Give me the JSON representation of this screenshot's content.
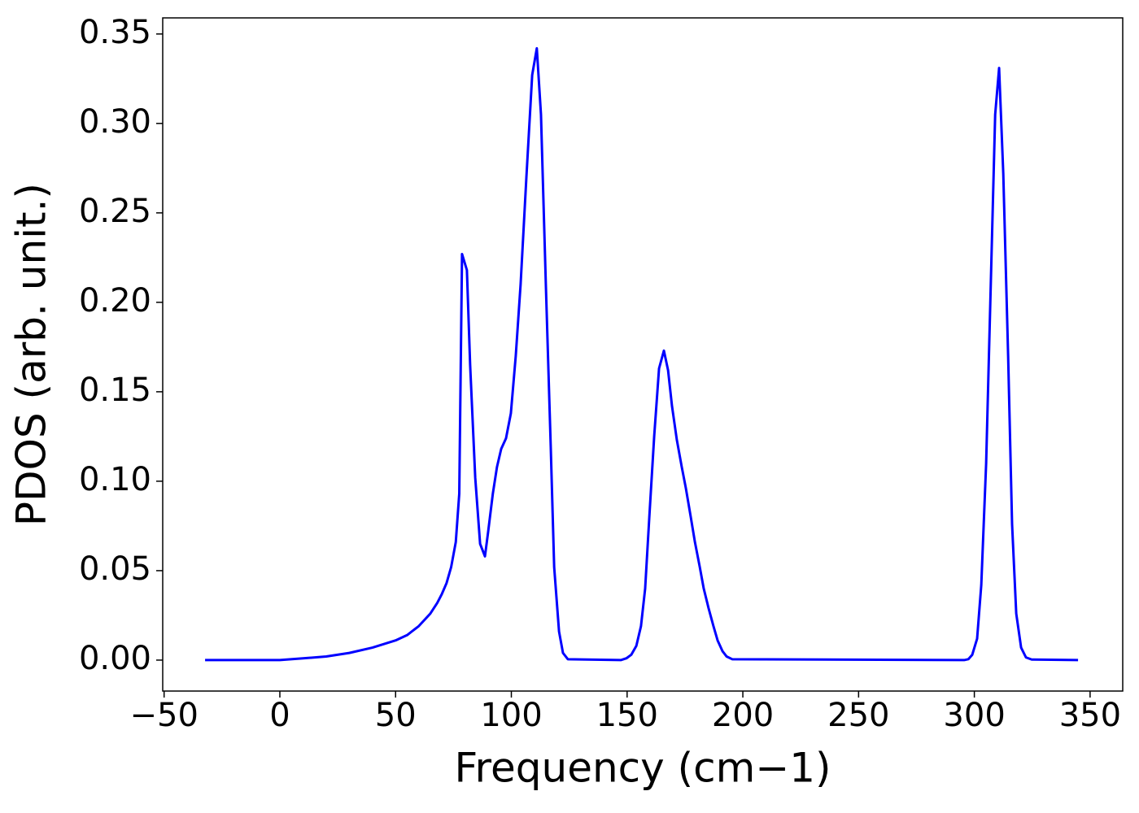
{
  "chart_data": {
    "type": "line",
    "xlabel": "Frequency (cm−1)",
    "ylabel": "PDOS (arb. unit.)",
    "color": "#0000ff",
    "x": [
      -32.3,
      0,
      10,
      20,
      30,
      40,
      50,
      55,
      60,
      65,
      68,
      70,
      72,
      74,
      76,
      77.5,
      78.7,
      80.8,
      82.2,
      84.4,
      86.5,
      88.6,
      90,
      92,
      93.8,
      95.6,
      97.7,
      99.8,
      101.9,
      104,
      106.5,
      109,
      111,
      112.8,
      114.9,
      117,
      118.5,
      120.6,
      122.3,
      124.4,
      147.3,
      149.7,
      151.8,
      154,
      156,
      157.8,
      159.6,
      161.7,
      163.8,
      165.9,
      167.7,
      169.4,
      171.5,
      173.6,
      175.4,
      177.5,
      179.3,
      181.4,
      183.1,
      185.2,
      187.3,
      189.1,
      191.2,
      193,
      195.4,
      295.6,
      297.4,
      299.1,
      301.2,
      303,
      305.1,
      306.9,
      309,
      310.7,
      312.5,
      314.6,
      316.3,
      318.1,
      320.2,
      322.3,
      324.8,
      344.8
    ],
    "values": [
      0,
      0,
      0.001,
      0.002,
      0.004,
      0.007,
      0.011,
      0.014,
      0.019,
      0.026,
      0.032,
      0.037,
      0.043,
      0.052,
      0.066,
      0.093,
      0.227,
      0.218,
      0.165,
      0.102,
      0.065,
      0.058,
      0.072,
      0.093,
      0.108,
      0.118,
      0.124,
      0.138,
      0.17,
      0.21,
      0.27,
      0.327,
      0.342,
      0.305,
      0.21,
      0.12,
      0.052,
      0.016,
      0.004,
      0.0005,
      0,
      0.001,
      0.003,
      0.008,
      0.019,
      0.04,
      0.08,
      0.125,
      0.163,
      0.173,
      0.162,
      0.142,
      0.123,
      0.108,
      0.096,
      0.08,
      0.066,
      0.052,
      0.04,
      0.029,
      0.019,
      0.011,
      0.005,
      0.002,
      0.0005,
      0,
      0.0005,
      0.003,
      0.012,
      0.042,
      0.11,
      0.2,
      0.305,
      0.331,
      0.272,
      0.17,
      0.076,
      0.026,
      0.007,
      0.0015,
      0.0003,
      0
    ],
    "xlim": [
      -50.6,
      364.1
    ],
    "ylim": [
      -0.0173,
      0.359
    ],
    "xticks": [
      {
        "value": -50,
        "label": "−50"
      },
      0,
      50,
      100,
      150,
      200,
      250,
      300,
      350
    ],
    "yticks": [
      {
        "value": 0,
        "label": "0.00"
      },
      {
        "value": 0.05,
        "label": "0.05"
      },
      {
        "value": 0.1,
        "label": "0.10"
      },
      {
        "value": 0.15,
        "label": "0.15"
      },
      {
        "value": 0.2,
        "label": "0.20"
      },
      {
        "value": 0.25,
        "label": "0.25"
      },
      {
        "value": 0.3,
        "label": "0.30"
      },
      {
        "value": 0.35,
        "label": "0.35"
      }
    ],
    "grid": false
  }
}
